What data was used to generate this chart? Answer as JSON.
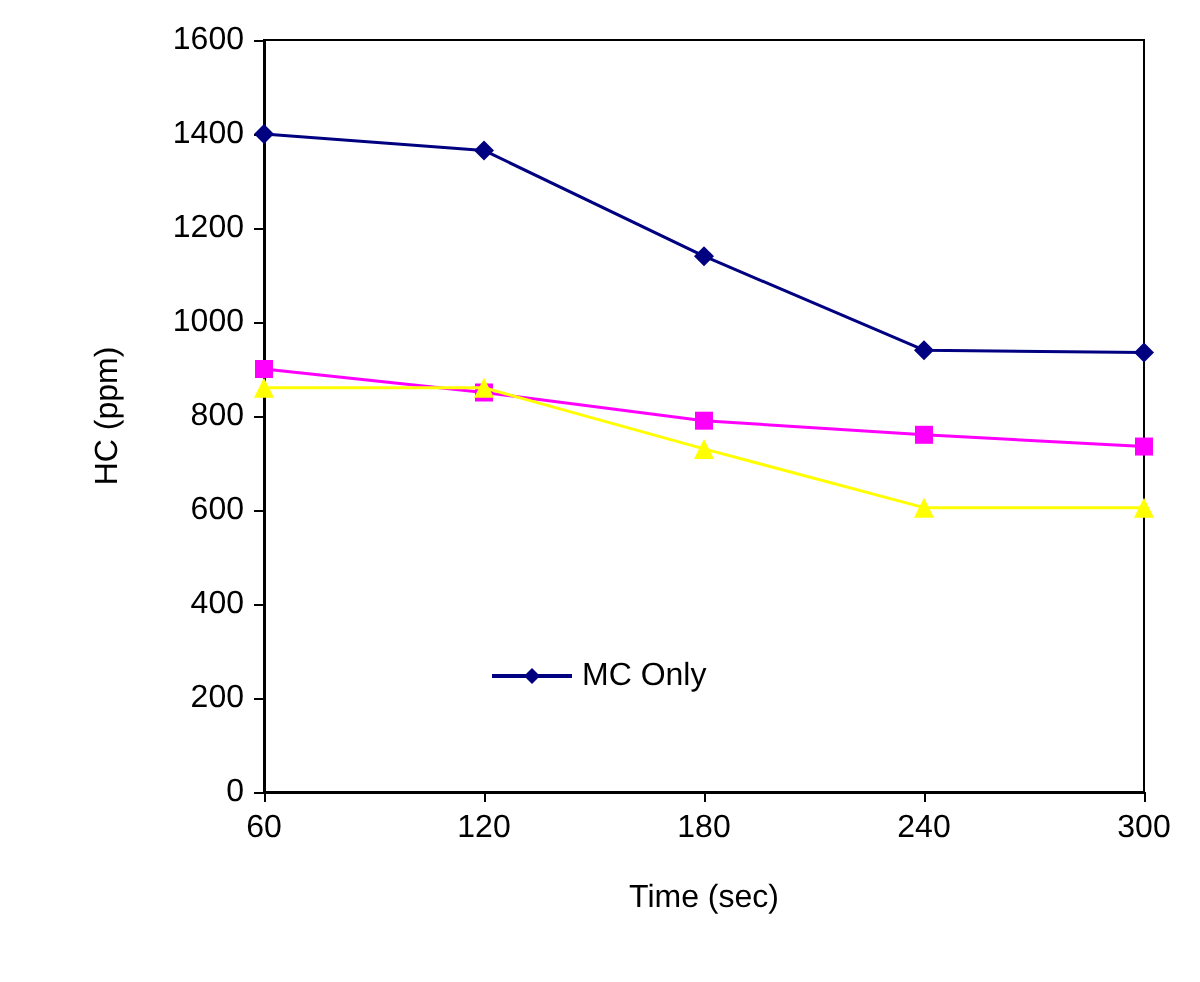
{
  "chart_data": {
    "type": "line",
    "xlabel": "Time (sec)",
    "ylabel": "HC (ppm)",
    "x": [
      60,
      120,
      180,
      240,
      300
    ],
    "series": [
      {
        "name": "MC Only",
        "color": "#000080",
        "marker": "diamond",
        "values": [
          1400,
          1365,
          1140,
          940,
          935
        ]
      },
      {
        "color": "#ff00ff",
        "marker": "square",
        "values": [
          900,
          850,
          790,
          760,
          735
        ]
      },
      {
        "color": "#ffff00",
        "marker": "triangle",
        "values": [
          860,
          860,
          730,
          605,
          605
        ]
      }
    ],
    "xlim": [
      60,
      300
    ],
    "xticks": [
      60,
      120,
      180,
      240,
      300
    ],
    "ylim": [
      0,
      1600
    ],
    "yticks": [
      0,
      200,
      400,
      600,
      800,
      1000,
      1200,
      1400,
      1600
    ],
    "grid": false,
    "legend": "bottom"
  }
}
